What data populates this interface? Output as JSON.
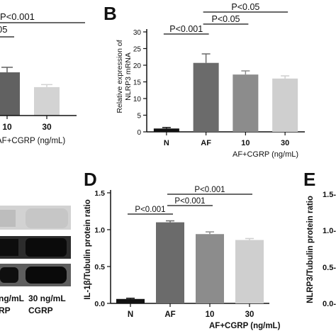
{
  "panels": {
    "A": {
      "sig_labels": [
        "P<0.001",
        "05"
      ],
      "partial_bars": [
        {
          "category": "10",
          "value": 15.5,
          "error": 1.8,
          "color": "#616161"
        },
        {
          "category": "30",
          "value": 10.2,
          "error": 0.9,
          "color": "#d3d3d3"
        }
      ],
      "tick_labels": [
        "10",
        "30"
      ],
      "group_label": "AF+CGRP (ng/mL)"
    },
    "B": {
      "letter": "B"
    },
    "C": {
      "lane_labels": [
        {
          "line1": "ng/mL",
          "line2": "RP"
        },
        {
          "line1": "30 ng/mL",
          "line2": "CGRP"
        }
      ]
    },
    "D": {
      "letter": "D"
    },
    "E": {
      "letter": "E",
      "ylabel": "NLRP3/Tubulin protein ratio",
      "ytick_labels": [
        "1.5-",
        "1.0-",
        "0.5-",
        "0.0-"
      ]
    }
  },
  "chart_data": [
    {
      "panel": "B",
      "type": "bar",
      "title": "",
      "ylabel": "Relative expression of NLRP3 mRNA",
      "xlabel": "",
      "categories": [
        "N",
        "AF",
        "10",
        "30"
      ],
      "group_label": "AF+CGRP (ng/mL)",
      "values": [
        1.0,
        20.7,
        17.2,
        16.0
      ],
      "errors": [
        0.3,
        2.7,
        1.1,
        0.8
      ],
      "colors": [
        "#111111",
        "#6b6b6b",
        "#8c8c8c",
        "#cfcfcf"
      ],
      "ylim": [
        0,
        30
      ],
      "yticks": [
        0,
        5,
        10,
        15,
        20,
        25,
        30
      ],
      "significance": [
        {
          "from": 0,
          "to": 1,
          "label": "P<0.001"
        },
        {
          "from": 1,
          "to": 2,
          "label": "P<0.05"
        },
        {
          "from": 1,
          "to": 3,
          "label": "P<0.05"
        }
      ]
    },
    {
      "panel": "D",
      "type": "bar",
      "title": "",
      "ylabel": "IL-1β/Tubulin protein ratio",
      "xlabel": "",
      "categories": [
        "N",
        "AF",
        "10",
        "30"
      ],
      "group_label": "AF+CGRP (ng/mL)",
      "values": [
        0.06,
        1.1,
        0.94,
        0.86
      ],
      "errors": [
        0.01,
        0.02,
        0.03,
        0.02
      ],
      "colors": [
        "#111111",
        "#6b6b6b",
        "#8c8c8c",
        "#cfcfcf"
      ],
      "ylim": [
        0,
        1.5
      ],
      "yticks": [
        0,
        0.5,
        1.0,
        1.5
      ],
      "significance": [
        {
          "from": 0,
          "to": 1,
          "label": "P<0.001"
        },
        {
          "from": 1,
          "to": 2,
          "label": "P<0.001"
        },
        {
          "from": 1,
          "to": 3,
          "label": "P<0.001"
        }
      ]
    }
  ]
}
